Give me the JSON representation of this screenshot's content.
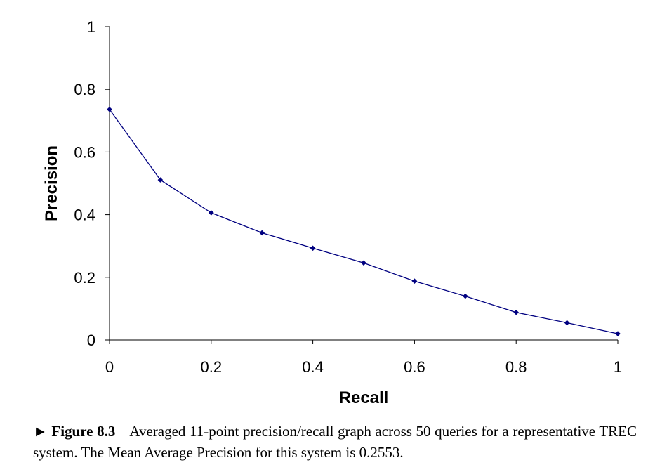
{
  "chart_data": {
    "type": "line",
    "xlabel": "Recall",
    "ylabel": "Precision",
    "xlim": [
      0,
      1
    ],
    "ylim": [
      0,
      1
    ],
    "x_ticks": [
      "0",
      "0.2",
      "0.4",
      "0.6",
      "0.8",
      "1"
    ],
    "y_ticks": [
      "0",
      "0.2",
      "0.4",
      "0.6",
      "0.8",
      "1"
    ],
    "grid": false,
    "series": [
      {
        "x": [
          0,
          0.1,
          0.2,
          0.3,
          0.4,
          0.5,
          0.6,
          0.7,
          0.8,
          0.9,
          1.0
        ],
        "y": [
          0.736,
          0.511,
          0.406,
          0.342,
          0.293,
          0.246,
          0.188,
          0.14,
          0.088,
          0.055,
          0.02
        ],
        "color": "#000080",
        "marker": "diamond"
      }
    ]
  },
  "caption": {
    "label": "► Figure 8.3",
    "text": "Averaged 11-point precision/recall graph across 50 queries for a representative TREC system. The Mean Average Precision for this system is 0.2553."
  }
}
